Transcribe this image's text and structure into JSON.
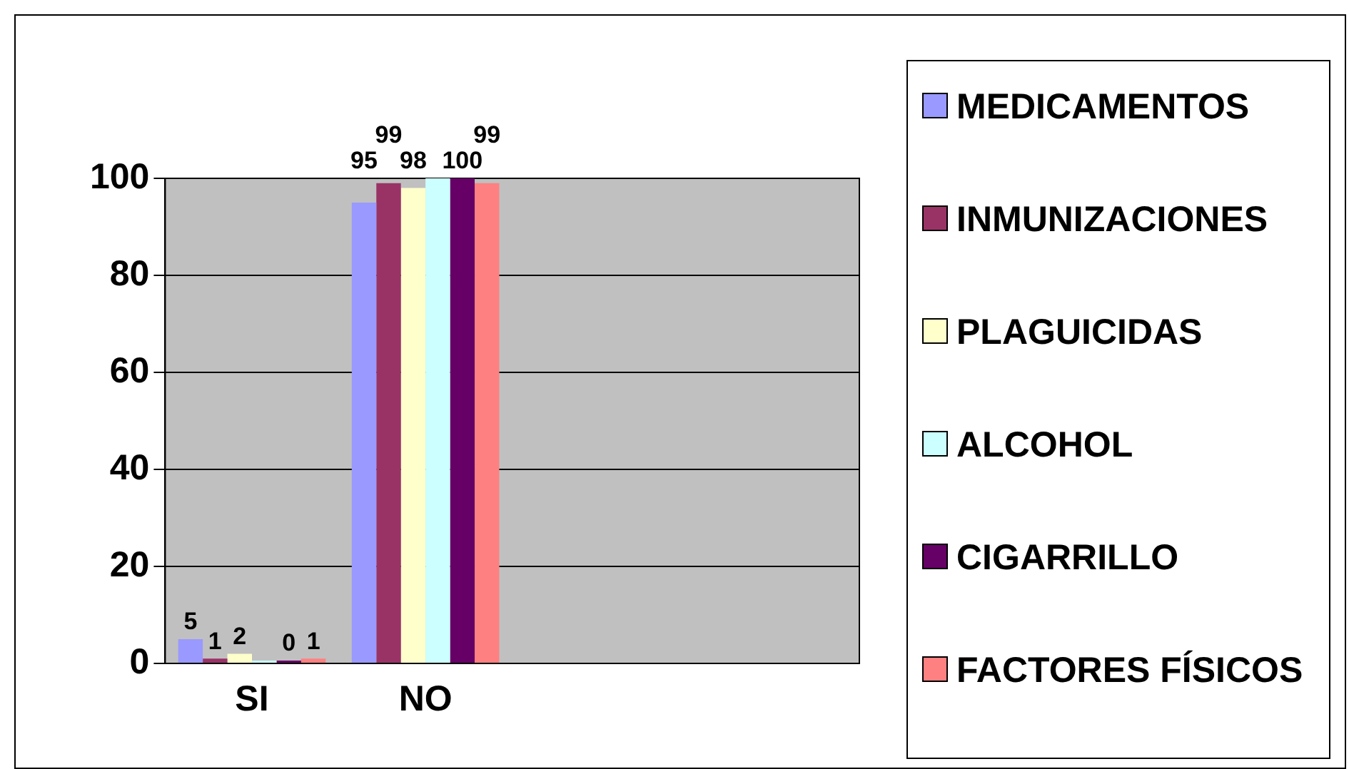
{
  "chart_data": {
    "type": "bar",
    "categories": [
      "SI",
      "NO",
      null,
      null
    ],
    "series": [
      {
        "name": "MEDICAMENTOS",
        "color": "#9999ff",
        "values": [
          5,
          95,
          null,
          null
        ],
        "value_labels": [
          "5",
          "95",
          null,
          null
        ]
      },
      {
        "name": "INMUNIZACIONES",
        "color": "#993366",
        "values": [
          1,
          99,
          null,
          null
        ],
        "value_labels": [
          "1",
          "99",
          null,
          null
        ]
      },
      {
        "name": "PLAGUICIDAS",
        "color": "#ffffcc",
        "values": [
          2,
          98,
          null,
          null
        ],
        "value_labels": [
          "2",
          "98",
          null,
          null
        ]
      },
      {
        "name": "ALCOHOL",
        "color": "#ccffff",
        "values": [
          0,
          100,
          null,
          null
        ],
        "value_labels": [
          null,
          null,
          null,
          null
        ]
      },
      {
        "name": "CIGARRILLO",
        "color": "#660066",
        "values": [
          0,
          100,
          null,
          null
        ],
        "value_labels": [
          "0",
          "100",
          null,
          null
        ]
      },
      {
        "name": "FACTORES FÍSICOS",
        "color": "#ff8080",
        "values": [
          1,
          99,
          null,
          null
        ],
        "value_labels": [
          "1",
          "99",
          null,
          null
        ]
      }
    ],
    "ylim": [
      0,
      100
    ],
    "yticks": [
      0,
      20,
      40,
      60,
      80,
      100
    ],
    "grid": "y",
    "legend": "right"
  }
}
